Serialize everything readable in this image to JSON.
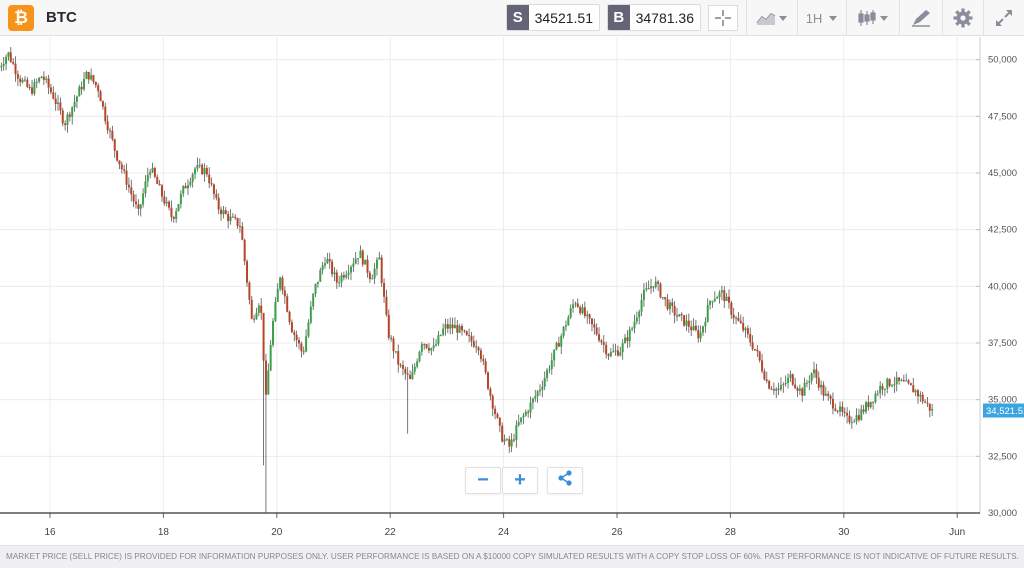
{
  "header": {
    "instrument_name": "BTC",
    "logo_glyph": "₿",
    "sell_tag": "S",
    "sell_price": "34521.51",
    "buy_tag": "B",
    "buy_price": "34781.36",
    "timeframe": "1H",
    "icons": [
      "bitcoin-logo-icon",
      "crosshair-icon",
      "chart-type-icon",
      "candlestick-icon",
      "draw-icon",
      "gear-icon",
      "fullscreen-icon"
    ]
  },
  "chart_controls": {
    "zoom_out": "−",
    "zoom_in": "+",
    "share_icon": "share-icon"
  },
  "footer": {
    "disclaimer": "MARKET PRICE (SELL PRICE) IS PROVIDED FOR INFORMATION PURPOSES ONLY. USER PERFORMANCE IS BASED ON A $10000 COPY SIMULATED RESULTS WITH A COPY STOP LOSS OF 60%. PAST PERFORMANCE IS NOT INDICATIVE OF FUTURE RESULTS."
  },
  "colors": {
    "up": "#3aa14a",
    "down": "#b64528",
    "accent": "#3b8fd9",
    "price_label": "#3ca5e0"
  },
  "chart_data": {
    "type": "candlestick",
    "x_ticks": [
      "16",
      "18",
      "20",
      "22",
      "24",
      "26",
      "28",
      "30",
      "Jun"
    ],
    "y_ticks": [
      "50,000",
      "47,500",
      "45,000",
      "42,500",
      "40,000",
      "37,500",
      "35,000",
      "32,500",
      "30,000"
    ],
    "ylim": [
      30000,
      51000
    ],
    "current_price_label": "34,521.51",
    "grid": true,
    "price_path": [
      [
        15.1,
        49500
      ],
      [
        15.3,
        50300
      ],
      [
        15.5,
        49200
      ],
      [
        15.7,
        48600
      ],
      [
        15.9,
        49300
      ],
      [
        16.1,
        48400
      ],
      [
        16.3,
        47200
      ],
      [
        16.5,
        48300
      ],
      [
        16.7,
        49400
      ],
      [
        16.9,
        48700
      ],
      [
        17.0,
        47600
      ],
      [
        17.2,
        45900
      ],
      [
        17.4,
        44600
      ],
      [
        17.6,
        43200
      ],
      [
        17.8,
        45300
      ],
      [
        18.0,
        44100
      ],
      [
        18.2,
        43000
      ],
      [
        18.4,
        44300
      ],
      [
        18.6,
        45200
      ],
      [
        18.8,
        45100
      ],
      [
        19.0,
        43500
      ],
      [
        19.2,
        43000
      ],
      [
        19.4,
        42700
      ],
      [
        19.6,
        38500
      ],
      [
        19.75,
        39500
      ],
      [
        19.85,
        35000
      ],
      [
        19.95,
        38000
      ],
      [
        20.1,
        40500
      ],
      [
        20.3,
        38200
      ],
      [
        20.5,
        37000
      ],
      [
        20.7,
        39800
      ],
      [
        20.9,
        41300
      ],
      [
        21.1,
        40200
      ],
      [
        21.3,
        40800
      ],
      [
        21.5,
        41500
      ],
      [
        21.7,
        40400
      ],
      [
        21.85,
        41200
      ],
      [
        22.0,
        38000
      ],
      [
        22.2,
        36500
      ],
      [
        22.4,
        35800
      ],
      [
        22.6,
        37600
      ],
      [
        22.8,
        37200
      ],
      [
        23.0,
        38200
      ],
      [
        23.2,
        38200
      ],
      [
        23.4,
        37700
      ],
      [
        23.6,
        37400
      ],
      [
        23.8,
        35300
      ],
      [
        24.0,
        33400
      ],
      [
        24.15,
        32900
      ],
      [
        24.3,
        33900
      ],
      [
        24.5,
        34700
      ],
      [
        24.7,
        35600
      ],
      [
        24.9,
        36800
      ],
      [
        25.1,
        38100
      ],
      [
        25.3,
        39400
      ],
      [
        25.5,
        38600
      ],
      [
        25.7,
        37900
      ],
      [
        25.9,
        37000
      ],
      [
        26.1,
        37200
      ],
      [
        26.3,
        38100
      ],
      [
        26.5,
        39600
      ],
      [
        26.7,
        40200
      ],
      [
        26.9,
        39300
      ],
      [
        27.1,
        38700
      ],
      [
        27.3,
        38300
      ],
      [
        27.5,
        37800
      ],
      [
        27.7,
        39500
      ],
      [
        27.9,
        39700
      ],
      [
        28.1,
        38700
      ],
      [
        28.3,
        38000
      ],
      [
        28.5,
        37100
      ],
      [
        28.7,
        35700
      ],
      [
        28.9,
        35400
      ],
      [
        29.1,
        36000
      ],
      [
        29.3,
        35300
      ],
      [
        29.5,
        36300
      ],
      [
        29.7,
        35200
      ],
      [
        29.9,
        34700
      ],
      [
        30.1,
        34100
      ],
      [
        30.3,
        34300
      ],
      [
        30.5,
        34900
      ],
      [
        30.7,
        35600
      ],
      [
        30.9,
        35800
      ],
      [
        31.1,
        35700
      ],
      [
        31.3,
        35400
      ],
      [
        31.5,
        34800
      ],
      [
        31.6,
        34500
      ]
    ]
  }
}
